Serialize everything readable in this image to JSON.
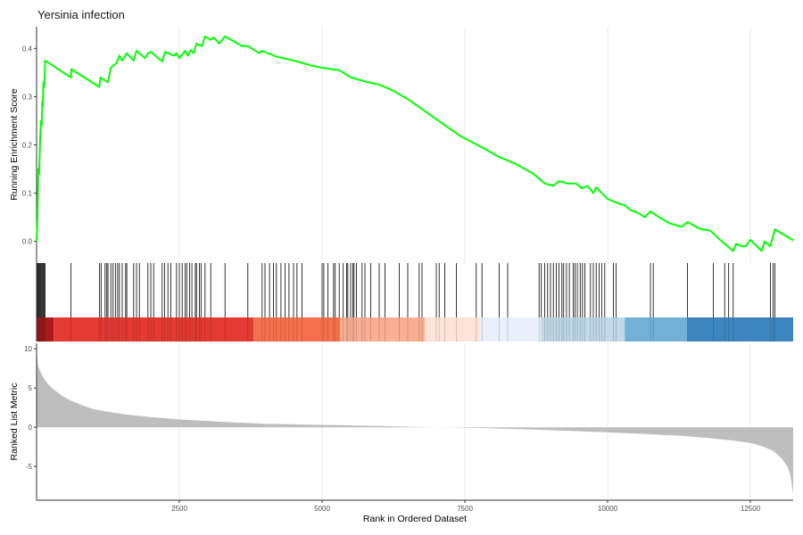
{
  "chart_data": {
    "type": "line",
    "title": "Yersinia infection",
    "xlabel": "Rank in Ordered Dataset",
    "xlim": [
      0,
      13250
    ],
    "x_ticks": [
      2500,
      5000,
      7500,
      10000,
      12500
    ],
    "grid": true,
    "legend": "none",
    "panels": {
      "enrichment": {
        "ylabel": "Running Enrichment Score",
        "ylim": [
          -0.045,
          0.445
        ],
        "y_ticks": [
          "0.0",
          "0.1",
          "0.2",
          "0.3",
          "0.4"
        ],
        "series": [
          {
            "color": "#00ff00",
            "points": [
              [
                0,
                0.0
              ],
              [
                15,
                0.05
              ],
              [
                30,
                0.15
              ],
              [
                45,
                0.14
              ],
              [
                60,
                0.2
              ],
              [
                75,
                0.25
              ],
              [
                90,
                0.24
              ],
              [
                100,
                0.29
              ],
              [
                110,
                0.28
              ],
              [
                120,
                0.33
              ],
              [
                135,
                0.32
              ],
              [
                150,
                0.375
              ],
              [
                600,
                0.34
              ],
              [
                610,
                0.357
              ],
              [
                1100,
                0.32
              ],
              [
                1120,
                0.34
              ],
              [
                1250,
                0.33
              ],
              [
                1300,
                0.36
              ],
              [
                1400,
                0.37
              ],
              [
                1450,
                0.385
              ],
              [
                1500,
                0.375
              ],
              [
                1580,
                0.39
              ],
              [
                1700,
                0.375
              ],
              [
                1750,
                0.395
              ],
              [
                1900,
                0.38
              ],
              [
                1950,
                0.39
              ],
              [
                2000,
                0.393
              ],
              [
                2200,
                0.373
              ],
              [
                2250,
                0.393
              ],
              [
                2400,
                0.385
              ],
              [
                2450,
                0.39
              ],
              [
                2500,
                0.38
              ],
              [
                2600,
                0.395
              ],
              [
                2650,
                0.385
              ],
              [
                2700,
                0.397
              ],
              [
                2750,
                0.39
              ],
              [
                2800,
                0.41
              ],
              [
                2900,
                0.405
              ],
              [
                2950,
                0.425
              ],
              [
                3050,
                0.418
              ],
              [
                3100,
                0.423
              ],
              [
                3200,
                0.41
              ],
              [
                3300,
                0.425
              ],
              [
                3450,
                0.415
              ],
              [
                3600,
                0.405
              ],
              [
                3700,
                0.405
              ],
              [
                3900,
                0.39
              ],
              [
                3950,
                0.395
              ],
              [
                4200,
                0.383
              ],
              [
                4500,
                0.375
              ],
              [
                4800,
                0.365
              ],
              [
                5000,
                0.36
              ],
              [
                5300,
                0.355
              ],
              [
                5500,
                0.34
              ],
              [
                5800,
                0.33
              ],
              [
                6000,
                0.325
              ],
              [
                6200,
                0.315
              ],
              [
                6500,
                0.295
              ],
              [
                6800,
                0.27
              ],
              [
                7100,
                0.245
              ],
              [
                7400,
                0.22
              ],
              [
                7800,
                0.195
              ],
              [
                8100,
                0.175
              ],
              [
                8400,
                0.16
              ],
              [
                8700,
                0.14
              ],
              [
                8900,
                0.12
              ],
              [
                9050,
                0.115
              ],
              [
                9150,
                0.125
              ],
              [
                9300,
                0.12
              ],
              [
                9450,
                0.12
              ],
              [
                9550,
                0.11
              ],
              [
                9650,
                0.115
              ],
              [
                9750,
                0.1
              ],
              [
                9800,
                0.112
              ],
              [
                10000,
                0.088
              ],
              [
                10200,
                0.078
              ],
              [
                10300,
                0.075
              ],
              [
                10400,
                0.065
              ],
              [
                10550,
                0.058
              ],
              [
                10650,
                0.05
              ],
              [
                10750,
                0.062
              ],
              [
                10900,
                0.05
              ],
              [
                11100,
                0.037
              ],
              [
                11300,
                0.03
              ],
              [
                11400,
                0.04
              ],
              [
                11600,
                0.027
              ],
              [
                11800,
                0.022
              ],
              [
                12000,
                0.0
              ],
              [
                12200,
                -0.02
              ],
              [
                12250,
                -0.005
              ],
              [
                12350,
                -0.01
              ],
              [
                12420,
                -0.01
              ],
              [
                12500,
                0.003
              ],
              [
                12700,
                -0.02
              ],
              [
                12750,
                0.0
              ],
              [
                12850,
                -0.01
              ],
              [
                12930,
                0.025
              ],
              [
                13250,
                0.002
              ]
            ]
          }
        ]
      },
      "hits": {
        "positions": [
          15,
          30,
          45,
          60,
          75,
          90,
          105,
          120,
          135,
          150,
          600,
          1100,
          1130,
          1200,
          1230,
          1250,
          1300,
          1340,
          1380,
          1420,
          1450,
          1500,
          1560,
          1580,
          1700,
          1750,
          1800,
          1950,
          2000,
          2050,
          2200,
          2240,
          2300,
          2350,
          2450,
          2500,
          2550,
          2600,
          2630,
          2680,
          2720,
          2780,
          2800,
          2850,
          2880,
          2950,
          3050,
          3300,
          3700,
          3950,
          4000,
          4080,
          4150,
          4200,
          4280,
          4350,
          4420,
          4500,
          4560,
          4650,
          5000,
          5030,
          5100,
          5200,
          5230,
          5300,
          5370,
          5430,
          5450,
          5500,
          5540,
          5560,
          5600,
          5700,
          5750,
          5850,
          6000,
          6100,
          6350,
          6500,
          6700,
          6750,
          7000,
          7050,
          7150,
          7350,
          7700,
          7800,
          8100,
          8250,
          8800,
          8840,
          8900,
          8950,
          9000,
          9050,
          9100,
          9150,
          9200,
          9230,
          9280,
          9330,
          9400,
          9430,
          9470,
          9520,
          9560,
          9600,
          9700,
          9750,
          9800,
          9850,
          9900,
          9950,
          10100,
          10150,
          10750,
          10800,
          11400,
          11850,
          12050,
          12120,
          12200,
          12850,
          12900,
          12930
        ],
        "colorbar": [
          {
            "from": 0,
            "to": 300,
            "color": "#a91a1d"
          },
          {
            "from": 300,
            "to": 3800,
            "color": "#e33a33"
          },
          {
            "from": 3800,
            "to": 5300,
            "color": "#f6704d"
          },
          {
            "from": 5300,
            "to": 6800,
            "color": "#f8ae93"
          },
          {
            "from": 6800,
            "to": 7750,
            "color": "#fde3d8"
          },
          {
            "from": 7750,
            "to": 8850,
            "color": "#e9f0f9"
          },
          {
            "from": 8850,
            "to": 10300,
            "color": "#c1d8e8"
          },
          {
            "from": 10300,
            "to": 11400,
            "color": "#73b0d6"
          },
          {
            "from": 11400,
            "to": 13250,
            "color": "#3d85bf"
          }
        ]
      },
      "ranked": {
        "ylabel": "Ranked List Metric",
        "ylim": [
          -9.3,
          10.7
        ],
        "y_ticks": [
          "10",
          "5",
          "0",
          "-5"
        ],
        "fill_color": "#bebebe",
        "profile": [
          [
            0,
            10.3
          ],
          [
            20,
            8.0
          ],
          [
            60,
            7.2
          ],
          [
            120,
            6.3
          ],
          [
            200,
            5.5
          ],
          [
            300,
            4.8
          ],
          [
            450,
            4.0
          ],
          [
            600,
            3.4
          ],
          [
            800,
            2.8
          ],
          [
            1000,
            2.3
          ],
          [
            1300,
            1.9
          ],
          [
            1600,
            1.6
          ],
          [
            2000,
            1.3
          ],
          [
            2500,
            1.0
          ],
          [
            3000,
            0.8
          ],
          [
            3500,
            0.6
          ],
          [
            4000,
            0.45
          ],
          [
            5000,
            0.3
          ],
          [
            6000,
            0.15
          ],
          [
            6800,
            0.02
          ],
          [
            7000,
            0.0
          ],
          [
            7800,
            -0.1
          ],
          [
            8500,
            -0.25
          ],
          [
            9500,
            -0.5
          ],
          [
            10500,
            -0.8
          ],
          [
            11300,
            -1.1
          ],
          [
            11800,
            -1.4
          ],
          [
            12200,
            -1.7
          ],
          [
            12500,
            -2.0
          ],
          [
            12700,
            -2.4
          ],
          [
            12900,
            -3.0
          ],
          [
            13050,
            -4.0
          ],
          [
            13150,
            -5.0
          ],
          [
            13200,
            -6.0
          ],
          [
            13250,
            -8.5
          ]
        ]
      }
    }
  }
}
